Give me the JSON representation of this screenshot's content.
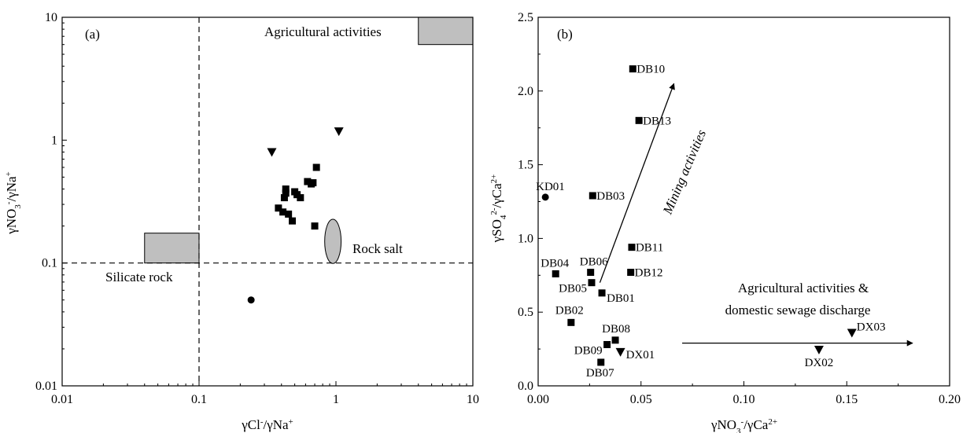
{
  "chart_data": [
    {
      "panel": "(a)",
      "type": "scatter",
      "xscale": "log",
      "yscale": "log",
      "xlim": [
        0.01,
        10
      ],
      "ylim": [
        0.01,
        10
      ],
      "xticks": [
        0.01,
        0.1,
        1,
        10
      ],
      "yticks": [
        0.01,
        0.1,
        1,
        10
      ],
      "xtick_labels": [
        "0.01",
        "0.1",
        "1",
        "10"
      ],
      "ytick_labels": [
        "0.01",
        "0.1",
        "1",
        "10"
      ],
      "xlabel_parts": [
        {
          "t": "γCl",
          "s": "n"
        },
        {
          "t": "-",
          "s": "sup"
        },
        {
          "t": "/γNa",
          "s": "n"
        },
        {
          "t": "+",
          "s": "sup"
        }
      ],
      "ylabel_parts": [
        {
          "t": "γNO",
          "s": "n"
        },
        {
          "t": "3",
          "s": "sub"
        },
        {
          "t": "-",
          "s": "sup"
        },
        {
          "t": "/γNa",
          "s": "n"
        },
        {
          "t": "+",
          "s": "sup"
        }
      ],
      "grid": false,
      "reference_lines": [
        {
          "orientation": "vertical",
          "x": 0.1,
          "style": "dashed"
        },
        {
          "orientation": "horizontal",
          "y": 0.1,
          "style": "dashed"
        }
      ],
      "regions": [
        {
          "shape": "rect",
          "x": [
            4,
            10
          ],
          "y": [
            6,
            10
          ],
          "fill": "#bfbfbf",
          "label": "Agricultural activities"
        },
        {
          "shape": "rect",
          "x": [
            0.04,
            0.1
          ],
          "y": [
            0.1,
            0.175
          ],
          "fill": "#bfbfbf",
          "label": "Silicate rock"
        },
        {
          "shape": "ellipse",
          "cx": 0.95,
          "cy": 0.15,
          "rx_decades": 0.06,
          "ry_decades": 0.18,
          "fill": "#bfbfbf",
          "label": "Rock salt"
        }
      ],
      "series": [
        {
          "marker": "square",
          "points": [
            [
              0.72,
              0.6
            ],
            [
              0.43,
              0.4
            ],
            [
              0.43,
              0.37
            ],
            [
              0.42,
              0.34
            ],
            [
              0.5,
              0.38
            ],
            [
              0.52,
              0.36
            ],
            [
              0.55,
              0.34
            ],
            [
              0.62,
              0.46
            ],
            [
              0.66,
              0.44
            ],
            [
              0.68,
              0.45
            ],
            [
              0.38,
              0.28
            ],
            [
              0.41,
              0.26
            ],
            [
              0.45,
              0.25
            ],
            [
              0.48,
              0.22
            ],
            [
              0.7,
              0.2
            ]
          ]
        },
        {
          "marker": "triangle-down",
          "points": [
            [
              0.34,
              0.8
            ],
            [
              1.05,
              1.18
            ]
          ]
        },
        {
          "marker": "circle",
          "points": [
            [
              0.24,
              0.05
            ]
          ]
        }
      ]
    },
    {
      "panel": "(b)",
      "type": "scatter",
      "xlim": [
        0,
        0.2
      ],
      "ylim": [
        0,
        2.5
      ],
      "xticks": [
        0,
        0.05,
        0.1,
        0.15,
        0.2
      ],
      "yticks": [
        0,
        0.5,
        1,
        1.5,
        2,
        2.5
      ],
      "xtick_labels": [
        "0.00",
        "0.05",
        "0.10",
        "0.15",
        "0.20"
      ],
      "ytick_labels": [
        "0.0",
        "0.5",
        "1.0",
        "1.5",
        "2.0",
        "2.5"
      ],
      "xlabel_parts": [
        {
          "t": "γNO",
          "s": "n"
        },
        {
          "t": "3",
          "s": "sub"
        },
        {
          "t": "-",
          "s": "sup"
        },
        {
          "t": "/γCa",
          "s": "n"
        },
        {
          "t": "2+",
          "s": "sup"
        }
      ],
      "ylabel_parts": [
        {
          "t": "γSO",
          "s": "n"
        },
        {
          "t": "4",
          "s": "sub"
        },
        {
          "t": "2-",
          "s": "sup"
        },
        {
          "t": "/γCa",
          "s": "n"
        },
        {
          "t": "2+",
          "s": "sup"
        }
      ],
      "grid": false,
      "annotations": [
        {
          "type": "arrow",
          "text": "Mining activities",
          "from": [
            0.03,
            0.7
          ],
          "to": [
            0.066,
            2.05
          ]
        },
        {
          "type": "arrow",
          "text_lines": [
            "Agricultural activities &",
            "domestic sewage discharge"
          ],
          "from": [
            0.07,
            0.29
          ],
          "to": [
            0.182,
            0.29
          ]
        }
      ],
      "points": [
        {
          "label": "DB10",
          "x": 0.046,
          "y": 2.15,
          "marker": "square"
        },
        {
          "label": "DB13",
          "x": 0.049,
          "y": 1.8,
          "marker": "square"
        },
        {
          "label": "DB03",
          "x": 0.0265,
          "y": 1.29,
          "marker": "square"
        },
        {
          "label": "KD01",
          "x": 0.0035,
          "y": 1.28,
          "marker": "circle"
        },
        {
          "label": "DB11",
          "x": 0.0455,
          "y": 0.94,
          "marker": "square"
        },
        {
          "label": "DB06",
          "x": 0.0255,
          "y": 0.77,
          "marker": "square"
        },
        {
          "label": "DB04",
          "x": 0.0085,
          "y": 0.76,
          "marker": "square"
        },
        {
          "label": "DB12",
          "x": 0.045,
          "y": 0.77,
          "marker": "square"
        },
        {
          "label": "DB05",
          "x": 0.026,
          "y": 0.7,
          "marker": "square"
        },
        {
          "label": "DB01",
          "x": 0.031,
          "y": 0.63,
          "marker": "square"
        },
        {
          "label": "DB02",
          "x": 0.016,
          "y": 0.43,
          "marker": "square"
        },
        {
          "label": "DB08",
          "x": 0.0375,
          "y": 0.31,
          "marker": "square"
        },
        {
          "label": "DB09",
          "x": 0.0335,
          "y": 0.28,
          "marker": "square"
        },
        {
          "label": "DX01",
          "x": 0.04,
          "y": 0.23,
          "marker": "triangle-down"
        },
        {
          "label": "DB07",
          "x": 0.0305,
          "y": 0.16,
          "marker": "square"
        },
        {
          "label": "DX03",
          "x": 0.1525,
          "y": 0.36,
          "marker": "triangle-down"
        },
        {
          "label": "DX02",
          "x": 0.1365,
          "y": 0.245,
          "marker": "triangle-down"
        }
      ]
    }
  ]
}
